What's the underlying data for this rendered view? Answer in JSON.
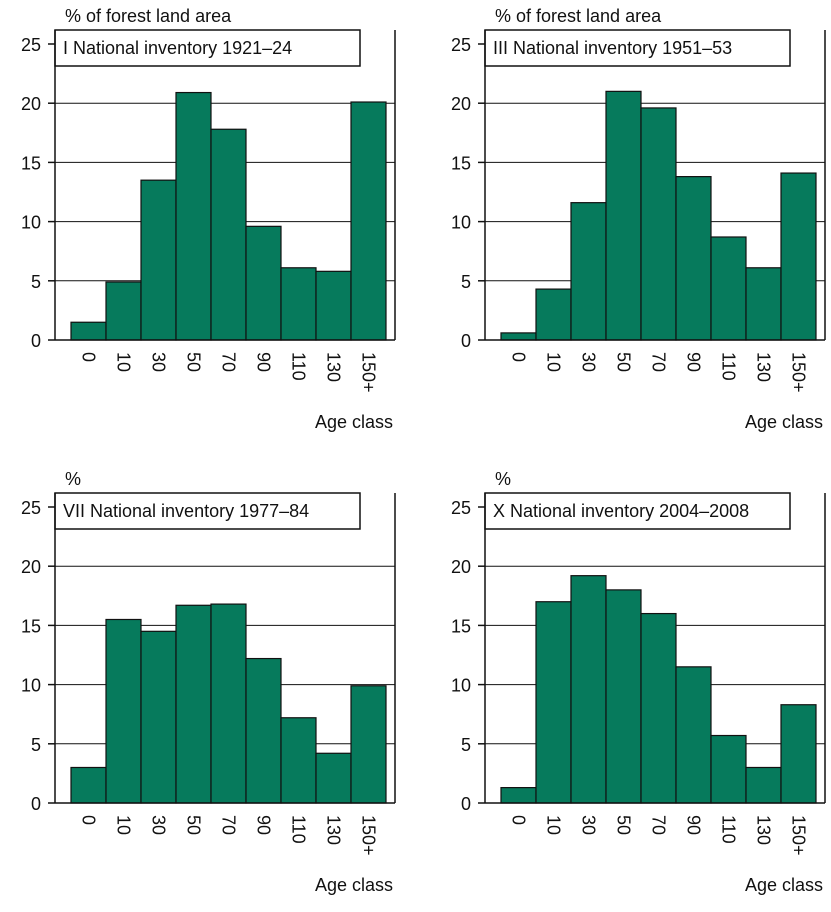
{
  "chart_data": [
    {
      "type": "bar",
      "title": "I National inventory 1921–24",
      "ylabel": "% of forest land area",
      "xlabel": "Age class",
      "categories": [
        "0",
        "10",
        "30",
        "50",
        "70",
        "90",
        "110",
        "130",
        "150+"
      ],
      "values": [
        1.5,
        4.9,
        13.5,
        20.9,
        17.8,
        9.6,
        6.1,
        5.8,
        20.1
      ],
      "color": "#067a5c",
      "ylim": [
        0,
        25
      ],
      "yticks": [
        0,
        5,
        10,
        15,
        20,
        25
      ],
      "grid": true
    },
    {
      "type": "bar",
      "title": "III National inventory 1951–53",
      "ylabel": "% of forest land area",
      "xlabel": "Age class",
      "categories": [
        "0",
        "10",
        "30",
        "50",
        "70",
        "90",
        "110",
        "130",
        "150+"
      ],
      "values": [
        0.6,
        4.3,
        11.6,
        21.0,
        19.6,
        13.8,
        8.7,
        6.1,
        14.1
      ],
      "color": "#067a5c",
      "ylim": [
        0,
        25
      ],
      "yticks": [
        0,
        5,
        10,
        15,
        20,
        25
      ],
      "grid": true
    },
    {
      "type": "bar",
      "title": "VII National inventory 1977–84",
      "ylabel": "%",
      "xlabel": "Age class",
      "categories": [
        "0",
        "10",
        "30",
        "50",
        "70",
        "90",
        "110",
        "130",
        "150+"
      ],
      "values": [
        3.0,
        15.5,
        14.5,
        16.7,
        16.8,
        12.2,
        7.2,
        4.2,
        9.9
      ],
      "color": "#067a5c",
      "ylim": [
        0,
        25
      ],
      "yticks": [
        0,
        5,
        10,
        15,
        20,
        25
      ],
      "grid": true
    },
    {
      "type": "bar",
      "title": "X National inventory 2004–2008",
      "ylabel": "%",
      "xlabel": "Age class",
      "categories": [
        "0",
        "10",
        "30",
        "50",
        "70",
        "90",
        "110",
        "130",
        "150+"
      ],
      "values": [
        1.3,
        17.0,
        19.2,
        18.0,
        16.0,
        11.5,
        5.7,
        3.0,
        8.3
      ],
      "color": "#067a5c",
      "ylim": [
        0,
        25
      ],
      "yticks": [
        0,
        5,
        10,
        15,
        20,
        25
      ],
      "grid": true
    }
  ]
}
